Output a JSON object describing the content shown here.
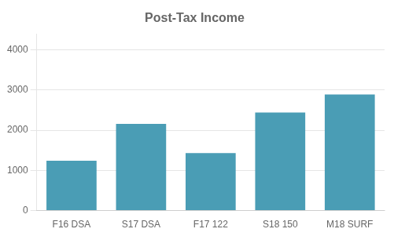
{
  "chart_data": {
    "type": "bar",
    "title": "Post-Tax Income",
    "categories": [
      "F16 DSA",
      "S17 DSA",
      "F17 122",
      "S18 150",
      "M18 SURF"
    ],
    "values": [
      1240,
      2160,
      1430,
      2440,
      2890
    ],
    "color": "#4a9db5",
    "ylim": [
      0,
      4400
    ],
    "yticks": [
      0,
      1000,
      2000,
      3000,
      4000
    ],
    "grid": true
  }
}
